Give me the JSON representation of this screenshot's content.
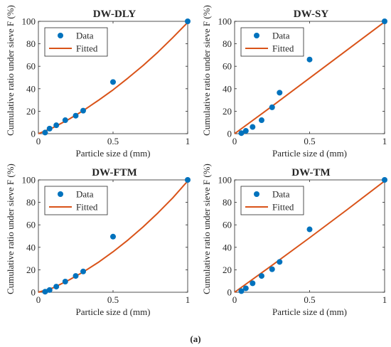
{
  "caption": "(a)",
  "chart_data": [
    {
      "type": "scatter",
      "title": "DW-DLY",
      "xlabel": "Particle size d (mm)",
      "ylabel": "Cumulative ratio under sieve F (%)",
      "xlim": [
        0,
        1
      ],
      "ylim": [
        0,
        100
      ],
      "xticks": [
        "0",
        "0.5",
        "1"
      ],
      "yticks": [
        "0",
        "20",
        "40",
        "60",
        "80",
        "100"
      ],
      "legend": {
        "placement": "top-left",
        "entries": [
          "Data",
          "Fitted"
        ]
      },
      "series": [
        {
          "name": "Data",
          "kind": "points",
          "x": [
            0.045,
            0.075,
            0.12,
            0.18,
            0.25,
            0.3,
            0.5,
            1.0
          ],
          "y": [
            1.0,
            4.5,
            7.5,
            12.0,
            16.0,
            20.5,
            46.0,
            100.0
          ]
        },
        {
          "name": "Fitted",
          "kind": "line",
          "x": [
            0.0,
            0.1,
            0.2,
            0.3,
            0.4,
            0.5,
            0.6,
            0.7,
            0.8,
            0.9,
            1.0
          ],
          "y": [
            0.0,
            5.5,
            12.5,
            20.5,
            29.5,
            39.0,
            49.5,
            60.5,
            72.5,
            85.5,
            99.0
          ]
        }
      ],
      "colors": {
        "Data": "#0072BD",
        "Fitted": "#D95319"
      }
    },
    {
      "type": "scatter",
      "title": "DW-SY",
      "xlabel": "Particle size d (mm)",
      "ylabel": "Cumulative ratio under sieve F (%)",
      "xlim": [
        0,
        1
      ],
      "ylim": [
        0,
        100
      ],
      "xticks": [
        "0",
        "0.5",
        "1"
      ],
      "yticks": [
        "0",
        "20",
        "40",
        "60",
        "80",
        "100"
      ],
      "legend": {
        "placement": "top-left",
        "entries": [
          "Data",
          "Fitted"
        ]
      },
      "series": [
        {
          "name": "Data",
          "kind": "points",
          "x": [
            0.045,
            0.075,
            0.12,
            0.18,
            0.25,
            0.3,
            0.5,
            1.0
          ],
          "y": [
            0.5,
            2.5,
            6.0,
            12.0,
            23.5,
            36.5,
            66.0,
            100.0
          ]
        },
        {
          "name": "Fitted",
          "kind": "line",
          "x": [
            0.0,
            0.25,
            0.5,
            0.75,
            1.0
          ],
          "y": [
            0.0,
            24.5,
            49.5,
            74.5,
            99.5
          ]
        }
      ],
      "colors": {
        "Data": "#0072BD",
        "Fitted": "#D95319"
      }
    },
    {
      "type": "scatter",
      "title": "DW-FTM",
      "xlabel": "Particle size d (mm)",
      "ylabel": "Cumulative ratio under sieve F (%)",
      "xlim": [
        0,
        1
      ],
      "ylim": [
        0,
        100
      ],
      "xticks": [
        "0",
        "0.5",
        "1"
      ],
      "yticks": [
        "0",
        "20",
        "40",
        "60",
        "80",
        "100"
      ],
      "legend": {
        "placement": "top-left",
        "entries": [
          "Data",
          "Fitted"
        ]
      },
      "series": [
        {
          "name": "Data",
          "kind": "points",
          "x": [
            0.045,
            0.075,
            0.12,
            0.18,
            0.25,
            0.3,
            0.5,
            1.0
          ],
          "y": [
            0.5,
            2.0,
            5.0,
            9.5,
            14.5,
            18.5,
            49.5,
            100.0
          ]
        },
        {
          "name": "Fitted",
          "kind": "line",
          "x": [
            0.0,
            0.1,
            0.2,
            0.3,
            0.4,
            0.5,
            0.6,
            0.7,
            0.8,
            0.9,
            1.0
          ],
          "y": [
            0.0,
            4.0,
            10.5,
            18.0,
            26.5,
            36.0,
            46.5,
            58.0,
            70.5,
            84.0,
            99.0
          ]
        }
      ],
      "colors": {
        "Data": "#0072BD",
        "Fitted": "#D95319"
      }
    },
    {
      "type": "scatter",
      "title": "DW-TM",
      "xlabel": "Particle size d (mm)",
      "ylabel": "Cumulative ratio under sieve F (%)",
      "xlim": [
        0,
        1
      ],
      "ylim": [
        0,
        100
      ],
      "xticks": [
        "0",
        "0.5",
        "1"
      ],
      "yticks": [
        "0",
        "20",
        "40",
        "60",
        "80",
        "100"
      ],
      "legend": {
        "placement": "top-left",
        "entries": [
          "Data",
          "Fitted"
        ]
      },
      "series": [
        {
          "name": "Data",
          "kind": "points",
          "x": [
            0.045,
            0.075,
            0.12,
            0.18,
            0.25,
            0.3,
            0.5,
            1.0
          ],
          "y": [
            1.0,
            3.5,
            8.0,
            14.5,
            20.5,
            27.0,
            56.0,
            100.0
          ]
        },
        {
          "name": "Fitted",
          "kind": "line",
          "x": [
            0.0,
            0.25,
            0.5,
            0.75,
            1.0
          ],
          "y": [
            0.0,
            24.0,
            48.5,
            73.5,
            99.0
          ]
        }
      ],
      "colors": {
        "Data": "#0072BD",
        "Fitted": "#D95319"
      }
    }
  ]
}
